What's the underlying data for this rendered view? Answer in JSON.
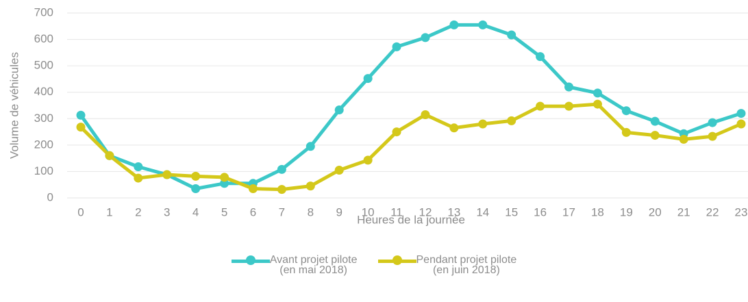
{
  "chart_data": {
    "type": "line",
    "y_label": "Volume de véhicules",
    "x_label": "Heures de la journée",
    "categories": [
      "0",
      "1",
      "2",
      "3",
      "4",
      "5",
      "6",
      "7",
      "8",
      "9",
      "10",
      "11",
      "12",
      "13",
      "14",
      "15",
      "16",
      "17",
      "18",
      "19",
      "20",
      "21",
      "22",
      "23"
    ],
    "series": [
      {
        "name": "Avant projet pilote\n(en mai 2018)",
        "color": "#3cc8c8",
        "values": [
          313,
          160,
          118,
          88,
          35,
          55,
          55,
          108,
          195,
          333,
          452,
          572,
          607,
          655,
          655,
          617,
          535,
          420,
          397,
          330,
          290,
          243,
          285,
          320
        ]
      },
      {
        "name": "Pendant projet pilote\n(en juin 2018)",
        "color": "#d4c81a",
        "values": [
          268,
          160,
          75,
          88,
          82,
          78,
          35,
          32,
          45,
          105,
          143,
          250,
          315,
          265,
          280,
          292,
          347,
          347,
          355,
          248,
          237,
          222,
          233,
          280
        ]
      }
    ],
    "ylim": [
      0,
      700
    ],
    "yticks": [
      0,
      100,
      200,
      300,
      400,
      500,
      600,
      700
    ],
    "grid": true
  }
}
